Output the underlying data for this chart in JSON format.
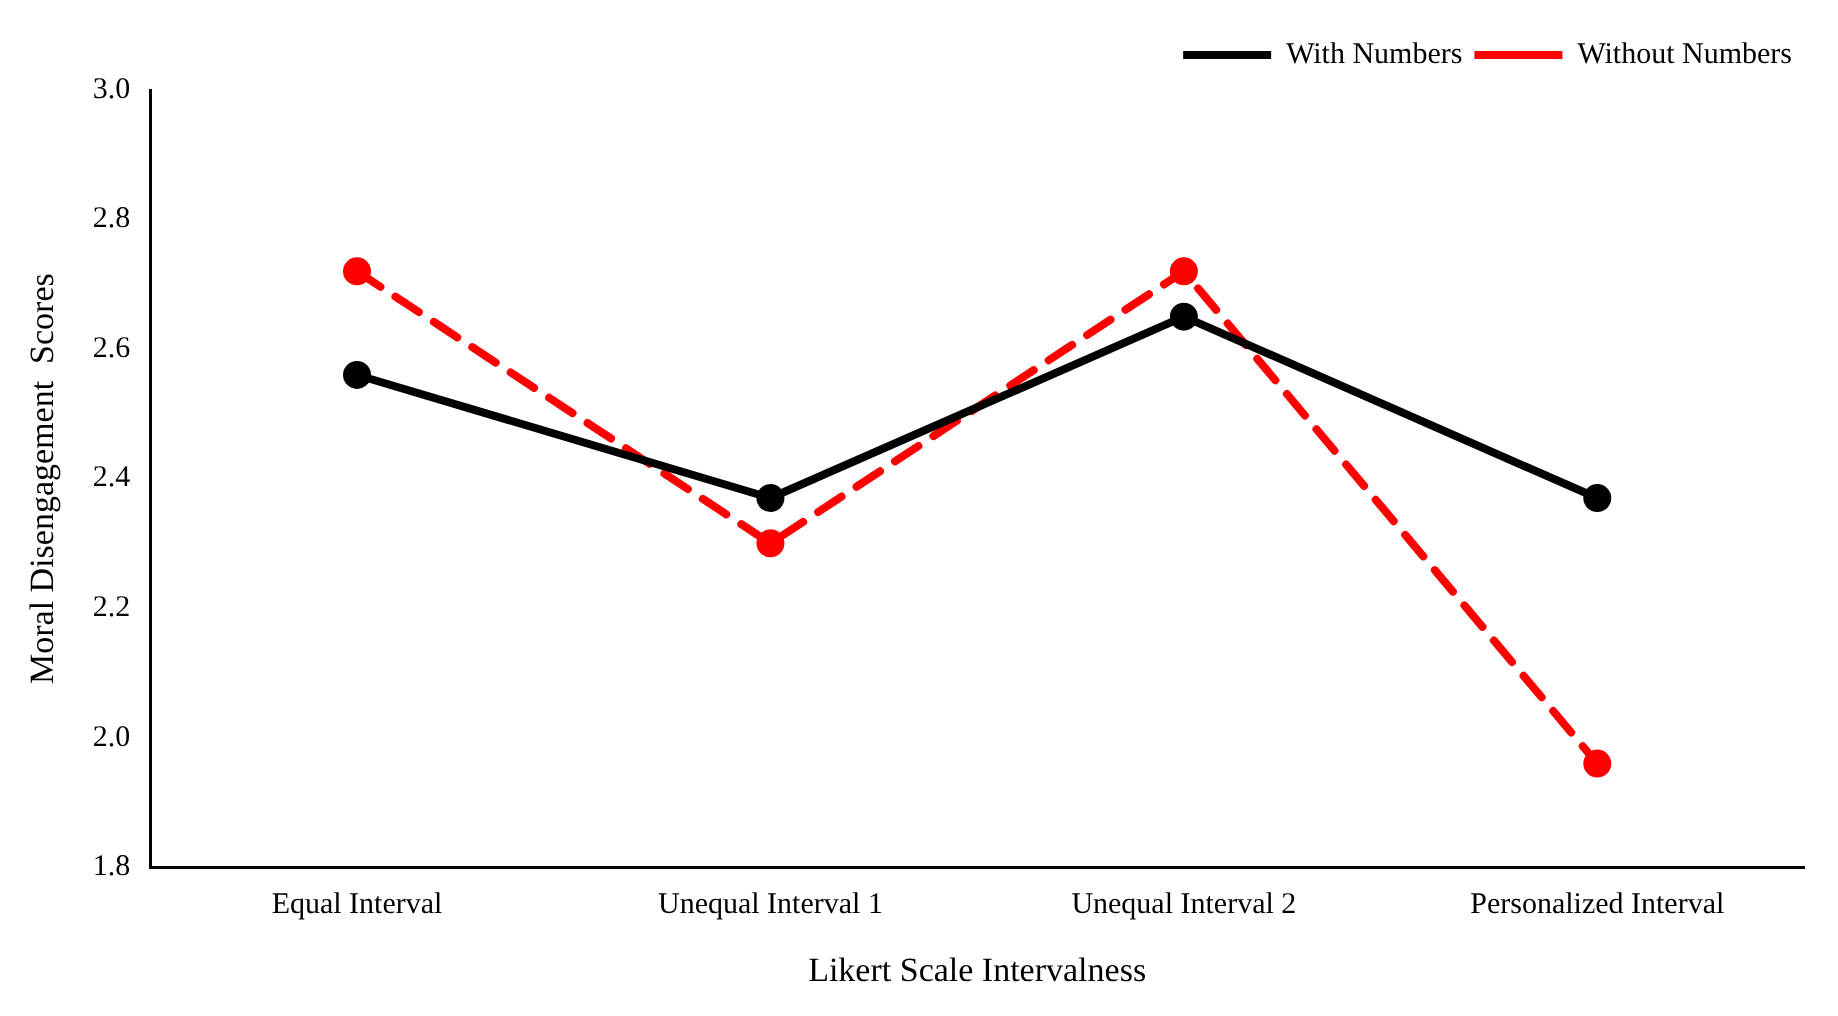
{
  "chart_data": {
    "type": "line",
    "xlabel": "Likert Scale Intervalness",
    "ylabel": "Moral Disengagement  Scores",
    "categories": [
      "Equal Interval",
      "Unequal Interval 1",
      "Unequal Interval 2",
      "Personalized Interval"
    ],
    "series": [
      {
        "name": "With Numbers",
        "color": "#000000",
        "values": [
          2.56,
          2.37,
          2.65,
          2.37
        ],
        "line_style": "solid"
      },
      {
        "name": "Without Numbers",
        "color": "#ff0000",
        "values": [
          2.72,
          2.3,
          2.72,
          1.96
        ],
        "line_style": "dashed"
      }
    ],
    "ylim": [
      1.8,
      3.0
    ],
    "yticks": [
      {
        "value": 1.8,
        "label": "1.8"
      },
      {
        "value": 2.0,
        "label": "2.0"
      },
      {
        "value": 2.2,
        "label": "2.2"
      },
      {
        "value": 2.4,
        "label": "2.4"
      },
      {
        "value": 2.6,
        "label": "2.6"
      },
      {
        "value": 2.8,
        "label": "2.8"
      },
      {
        "value": 3.0,
        "label": "3.0"
      }
    ],
    "grid": false,
    "legend": "top right",
    "marker": "circle"
  }
}
